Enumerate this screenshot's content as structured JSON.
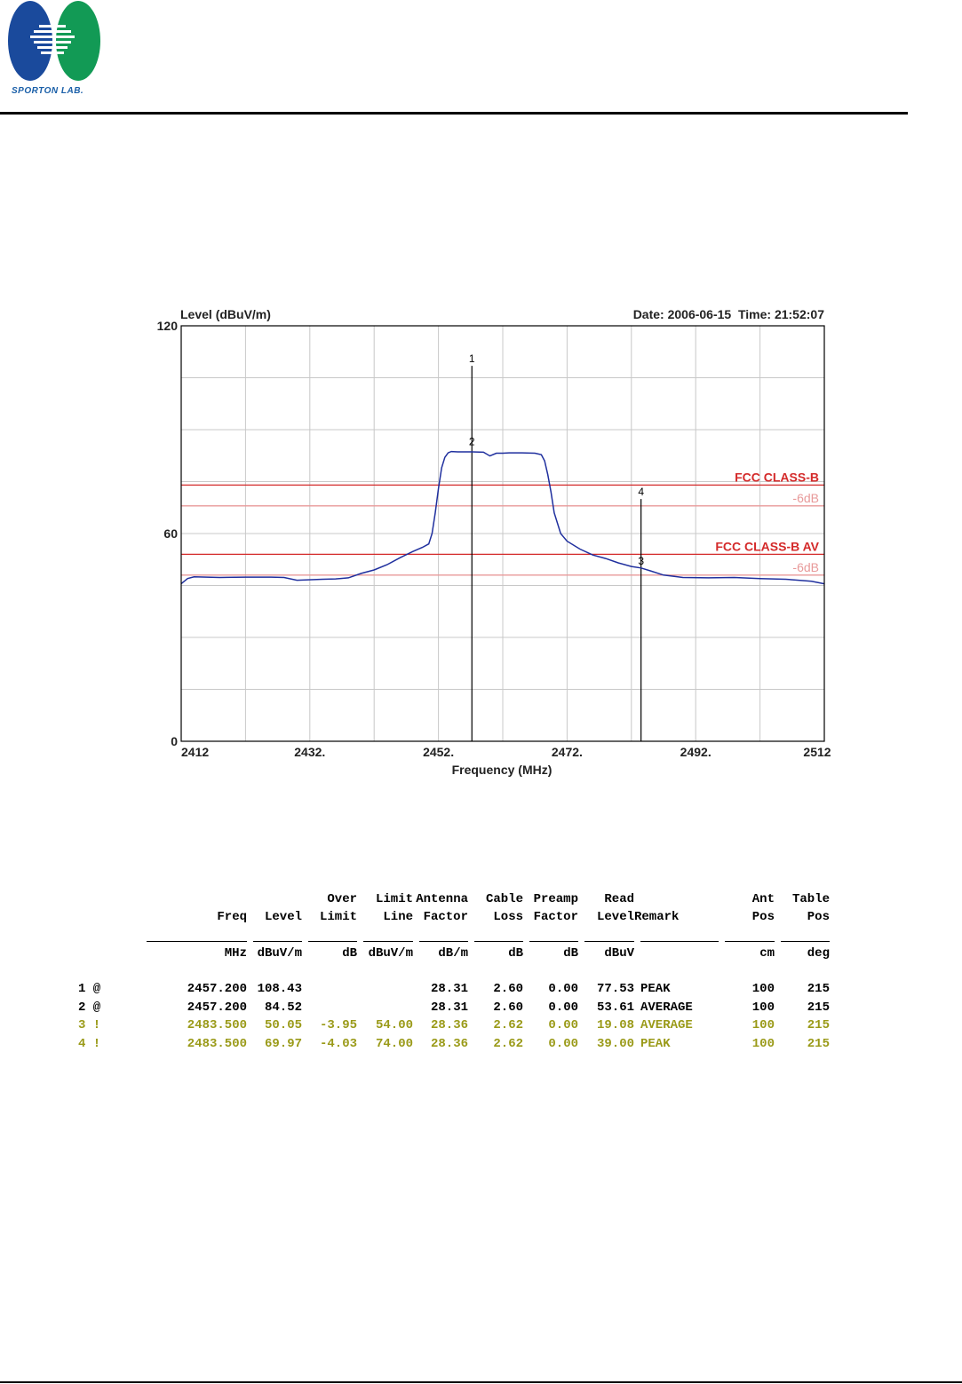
{
  "header": {
    "logo_text": "SPORTON LAB."
  },
  "chart_data": {
    "type": "line",
    "ylabel": "Level (dBuV/m)",
    "xlabel": "Frequency (MHz)",
    "date_time": "Date: 2006-06-15  Time: 21:52:07",
    "xlim": [
      2412,
      2512
    ],
    "ylim": [
      0,
      120
    ],
    "x_tick_labels": [
      {
        "value": 2412,
        "label": "2412"
      },
      {
        "value": 2432,
        "label": "2432."
      },
      {
        "value": 2452,
        "label": "2452."
      },
      {
        "value": 2472,
        "label": "2472."
      },
      {
        "value": 2492,
        "label": "2492."
      },
      {
        "value": 2512,
        "label": "2512"
      }
    ],
    "y_tick_labels": [
      {
        "value": 120,
        "label": "120"
      },
      {
        "value": 60,
        "label": "60"
      },
      {
        "value": 0,
        "label": "0"
      }
    ],
    "grid": true,
    "x_grid_step": 10,
    "y_grid_step": 15,
    "limit_lines": [
      {
        "label": "FCC CLASS-B",
        "value": 74,
        "color": "#d42a2a"
      },
      {
        "label": "-6dB",
        "value": 68,
        "color": "#e89a9a"
      },
      {
        "label": "FCC CLASS-B  AV",
        "value": 54,
        "color": "#d42a2a"
      },
      {
        "label": "-6dB",
        "value": 48,
        "color": "#e89a9a"
      }
    ],
    "series": [
      {
        "color": "#1f2f9e",
        "x": [
          2412,
          2413,
          2414,
          2418,
          2422,
          2426,
          2428,
          2430,
          2434,
          2436,
          2438,
          2440,
          2442,
          2444,
          2446,
          2448,
          2449.5,
          2450.5,
          2451,
          2451.5,
          2452,
          2452.5,
          2453,
          2453.5,
          2454,
          2455,
          2456,
          2457.2,
          2459,
          2460,
          2461,
          2462,
          2463,
          2465,
          2467,
          2468,
          2468.5,
          2469,
          2469.5,
          2470,
          2471,
          2472,
          2474,
          2476,
          2478,
          2480,
          2482,
          2483.5,
          2485,
          2487,
          2490,
          2494,
          2498,
          2502,
          2506,
          2508,
          2510,
          2512
        ],
        "y": [
          45.5,
          47,
          47.5,
          47.3,
          47.4,
          47.4,
          47.3,
          46.5,
          46.8,
          46.9,
          47.2,
          48.5,
          49.5,
          51,
          53,
          54.8,
          56,
          57,
          60,
          66,
          73,
          79,
          82,
          83.3,
          83.7,
          83.6,
          83.6,
          83.6,
          83.5,
          82.4,
          83.2,
          83.2,
          83.3,
          83.3,
          83.2,
          82.8,
          81,
          77,
          72,
          66,
          60,
          57.8,
          55.5,
          53.8,
          52.8,
          51.5,
          50.5,
          50.05,
          49.2,
          48,
          47.3,
          47.2,
          47.3,
          47,
          46.8,
          46.5,
          46.2,
          45.5
        ]
      }
    ],
    "markers": [
      {
        "label": "1",
        "x": 2457.2,
        "y": 108.43
      },
      {
        "label": "2",
        "x": 2457.2,
        "y": 84.52
      },
      {
        "label": "3",
        "x": 2483.5,
        "y": 50.05
      },
      {
        "label": "4",
        "x": 2483.5,
        "y": 69.97
      }
    ],
    "colors": {
      "frame": "#000000",
      "grid": "#c8c8c8",
      "trace": "#1f2f9e"
    }
  },
  "table": {
    "header_row1": [
      "",
      "",
      "",
      "Over",
      "Limit",
      "Antenna",
      "Cable",
      "Preamp",
      "Read",
      "",
      "Ant",
      "Table"
    ],
    "header_row2": [
      "",
      "Freq",
      "Level",
      "Limit",
      "Line",
      "Factor",
      "Loss",
      "Factor",
      "Level",
      "Remark",
      "Pos",
      "Pos"
    ],
    "units": [
      "",
      "MHz",
      "dBuV/m",
      "dB",
      "dBuV/m",
      "dB/m",
      "dB",
      "dB",
      "dBuV",
      "",
      "cm",
      "deg"
    ],
    "rows": [
      {
        "mark": "1 @",
        "freq": "2457.200",
        "level": "108.43",
        "over": "",
        "limit": "",
        "ant": "28.31",
        "cable": "2.60",
        "preamp": "0.00",
        "read": "77.53",
        "remark": "PEAK",
        "antpos": "100",
        "tablepos": "215",
        "color": "#000000"
      },
      {
        "mark": "2 @",
        "freq": "2457.200",
        "level": "84.52",
        "over": "",
        "limit": "",
        "ant": "28.31",
        "cable": "2.60",
        "preamp": "0.00",
        "read": "53.61",
        "remark": "AVERAGE",
        "antpos": "100",
        "tablepos": "215",
        "color": "#000000"
      },
      {
        "mark": "3 !",
        "freq": "2483.500",
        "level": "50.05",
        "over": "-3.95",
        "limit": "54.00",
        "ant": "28.36",
        "cable": "2.62",
        "preamp": "0.00",
        "read": "19.08",
        "remark": "AVERAGE",
        "antpos": "100",
        "tablepos": "215",
        "color": "#9a9a18"
      },
      {
        "mark": "4 !",
        "freq": "2483.500",
        "level": "69.97",
        "over": "-4.03",
        "limit": "74.00",
        "ant": "28.36",
        "cable": "2.62",
        "preamp": "0.00",
        "read": "39.00",
        "remark": "PEAK",
        "antpos": "100",
        "tablepos": "215",
        "color": "#9a9a18"
      }
    ]
  }
}
